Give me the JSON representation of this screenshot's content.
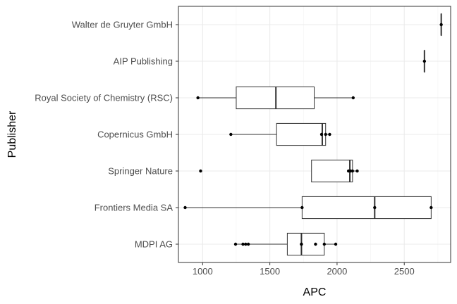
{
  "chart_data": {
    "type": "boxplot",
    "xlabel": "APC",
    "ylabel": "Publisher",
    "xlim": [
      820,
      2845
    ],
    "x_ticks": [
      1000,
      1500,
      2000,
      2500
    ],
    "x_tick_labels": [
      "1000",
      "1500",
      "2000",
      "2500"
    ],
    "grid": true,
    "categories": [
      "MDPI AG",
      "Frontiers Media SA",
      "Springer Nature",
      "Copernicus GmbH",
      "Royal Society of Chemistry (RSC)",
      "AIP Publishing",
      "Walter de Gruyter GmbH"
    ],
    "boxes": [
      {
        "category": "MDPI AG",
        "whisker_low": 1245,
        "q1": 1630,
        "median": 1735,
        "q3": 1905,
        "whisker_high": 1990,
        "points": [
          1245,
          1300,
          1320,
          1340,
          1735,
          1735,
          1840,
          1905,
          1990
        ]
      },
      {
        "category": "Frontiers Media SA",
        "whisker_low": 870,
        "q1": 1740,
        "median": 2280,
        "q3": 2700,
        "whisker_high": 2700,
        "points": [
          870,
          1740,
          2280,
          2700
        ]
      },
      {
        "category": "Springer Nature",
        "whisker_low": 1810,
        "q1": 1810,
        "median": 2095,
        "q3": 2115,
        "whisker_high": 2150,
        "points": [
          985,
          2085,
          2100,
          2115,
          2150
        ]
      },
      {
        "category": "Copernicus GmbH",
        "whisker_low": 1210,
        "q1": 1550,
        "median": 1890,
        "q3": 1915,
        "whisker_high": 1945,
        "points": [
          1210,
          1885,
          1915,
          1945
        ]
      },
      {
        "category": "Royal Society of Chemistry (RSC)",
        "whisker_low": 965,
        "q1": 1250,
        "median": 1545,
        "q3": 1830,
        "whisker_high": 2120,
        "points": [
          965,
          2120
        ]
      },
      {
        "category": "AIP Publishing",
        "whisker_low": 2650,
        "q1": 2650,
        "median": 2650,
        "q3": 2650,
        "whisker_high": 2650,
        "points": [
          2650
        ]
      },
      {
        "category": "Walter de Gruyter GmbH",
        "whisker_low": 2775,
        "q1": 2775,
        "median": 2775,
        "q3": 2775,
        "whisker_high": 2775,
        "points": [
          2775
        ]
      }
    ]
  }
}
